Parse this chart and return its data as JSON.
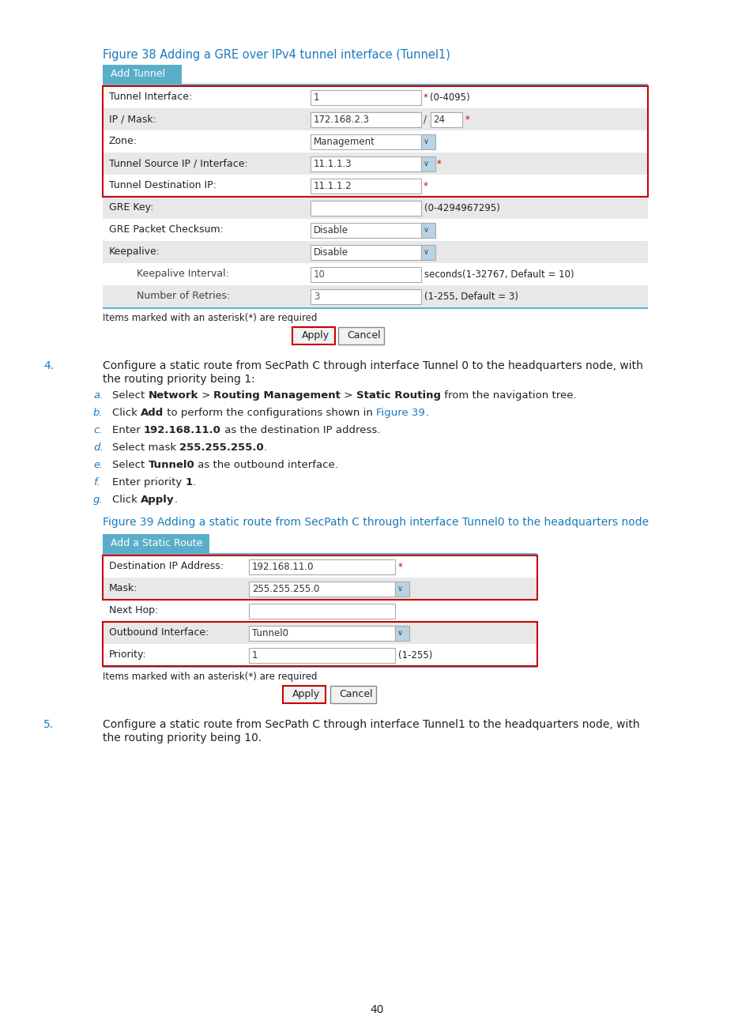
{
  "page_bg": "#ffffff",
  "fig_title1": "Figure 38 Adding a GRE over IPv4 tunnel interface (Tunnel1)",
  "fig_title2": "Figure 39 Adding a static route from SecPath C through interface Tunnel0 to the headquarters node",
  "tab_title1": "Add Tunnel",
  "tab_title2": "Add a Static Route",
  "tab_header_color": "#5aaec8",
  "tab_border_color": "#5ab4d4",
  "red_border_color": "#cc0000",
  "field_border": "#aaaaaa",
  "cyan_title_color": "#1a7abf",
  "text_color": "#222222",
  "red_star_color": "#cc0000",
  "table1_rows": [
    {
      "label": "Tunnel Interface:",
      "value": "1",
      "star": true,
      "extra": "(0-4095)",
      "bg": "#ffffff",
      "red_border": true,
      "indent": false,
      "dropdown": false,
      "mask_row": false,
      "grayed": false
    },
    {
      "label": "IP / Mask:",
      "value": "172.168.2.3",
      "star": false,
      "extra": "",
      "bg": "#e8e8e8",
      "red_border": true,
      "indent": false,
      "dropdown": false,
      "mask_row": true,
      "grayed": false
    },
    {
      "label": "Zone:",
      "value": "Management",
      "star": false,
      "extra": "",
      "bg": "#ffffff",
      "red_border": true,
      "indent": false,
      "dropdown": true,
      "mask_row": false,
      "grayed": false
    },
    {
      "label": "Tunnel Source IP / Interface:",
      "value": "11.1.1.3",
      "star": true,
      "extra": "",
      "bg": "#e8e8e8",
      "red_border": true,
      "indent": false,
      "dropdown": true,
      "mask_row": false,
      "grayed": false
    },
    {
      "label": "Tunnel Destination IP:",
      "value": "11.1.1.2",
      "star": true,
      "extra": "",
      "bg": "#ffffff",
      "red_border": true,
      "indent": false,
      "dropdown": false,
      "mask_row": false,
      "grayed": false
    },
    {
      "label": "GRE Key:",
      "value": "",
      "star": false,
      "extra": "(0-4294967295)",
      "bg": "#e8e8e8",
      "red_border": false,
      "indent": false,
      "dropdown": false,
      "mask_row": false,
      "grayed": false
    },
    {
      "label": "GRE Packet Checksum:",
      "value": "Disable",
      "star": false,
      "extra": "",
      "bg": "#ffffff",
      "red_border": false,
      "indent": false,
      "dropdown": true,
      "mask_row": false,
      "grayed": false
    },
    {
      "label": "Keepalive:",
      "value": "Disable",
      "star": false,
      "extra": "",
      "bg": "#e8e8e8",
      "red_border": false,
      "indent": false,
      "dropdown": true,
      "mask_row": false,
      "grayed": false
    },
    {
      "label": "Keepalive Interval:",
      "value": "10",
      "star": false,
      "extra": "seconds(1-32767, Default = 10)",
      "bg": "#ffffff",
      "red_border": false,
      "indent": true,
      "dropdown": false,
      "mask_row": false,
      "grayed": true
    },
    {
      "label": "Number of Retries:",
      "value": "3",
      "star": false,
      "extra": "(1-255, Default = 3)",
      "bg": "#e8e8e8",
      "red_border": false,
      "indent": true,
      "dropdown": false,
      "mask_row": false,
      "grayed": true
    }
  ],
  "table2_rows": [
    {
      "label": "Destination IP Address:",
      "value": "192.168.11.0",
      "star": true,
      "extra": "",
      "bg": "#ffffff",
      "red_border_a": true,
      "red_border_b": false,
      "dropdown": false
    },
    {
      "label": "Mask:",
      "value": "255.255.255.0",
      "star": false,
      "extra": "",
      "bg": "#e8e8e8",
      "red_border_a": true,
      "red_border_b": false,
      "dropdown": true
    },
    {
      "label": "Next Hop:",
      "value": "",
      "star": false,
      "extra": "",
      "bg": "#ffffff",
      "red_border_a": false,
      "red_border_b": false,
      "dropdown": false
    },
    {
      "label": "Outbound Interface:",
      "value": "Tunnel0",
      "star": false,
      "extra": "",
      "bg": "#e8e8e8",
      "red_border_a": false,
      "red_border_b": true,
      "dropdown": true
    },
    {
      "label": "Priority:",
      "value": "1",
      "star": false,
      "extra": "(1-255)",
      "bg": "#ffffff",
      "red_border_a": false,
      "red_border_b": true,
      "dropdown": false
    }
  ],
  "items_note": "Items marked with an asterisk(*) are required",
  "page_number": "40"
}
